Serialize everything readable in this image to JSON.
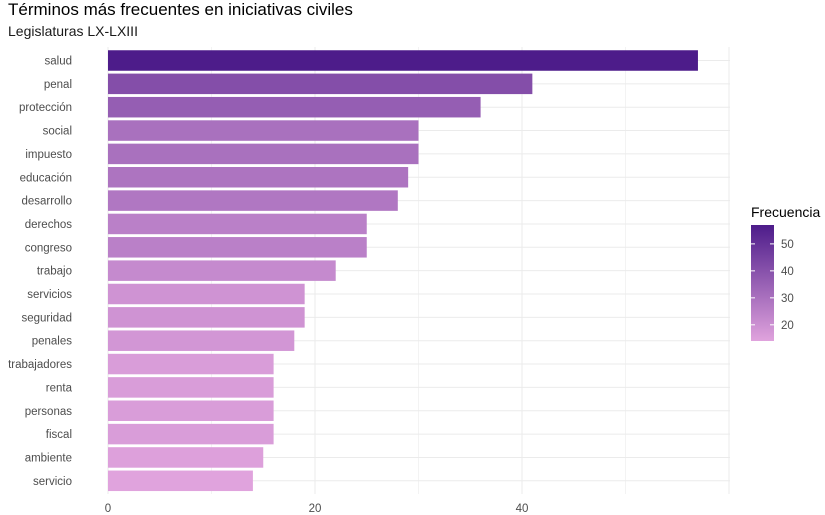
{
  "chart_data": {
    "type": "bar",
    "orientation": "horizontal",
    "title": "Términos más frecuentes en iniciativas civiles",
    "subtitle": "Legislaturas LX-LXIII",
    "xlabel": "",
    "ylabel": "",
    "xlim": [
      0,
      60
    ],
    "x_ticks": [
      0,
      20,
      40
    ],
    "grid": true,
    "categories": [
      "salud",
      "penal",
      "protección",
      "social",
      "impuesto",
      "educación",
      "desarrollo",
      "derechos",
      "congreso",
      "trabajo",
      "servicios",
      "seguridad",
      "penales",
      "trabajadores",
      "renta",
      "personas",
      "fiscal",
      "ambiente",
      "servicio"
    ],
    "values": [
      57,
      41,
      36,
      30,
      30,
      29,
      28,
      25,
      25,
      22,
      19,
      19,
      18,
      16,
      16,
      16,
      16,
      15,
      14
    ],
    "legend": {
      "title": "Frecuencia",
      "position": "right",
      "ticks": [
        20,
        30,
        40,
        50
      ],
      "range": [
        14,
        57
      ],
      "color_low": "#e0a3dd",
      "color_high": "#4d1c8a"
    }
  }
}
